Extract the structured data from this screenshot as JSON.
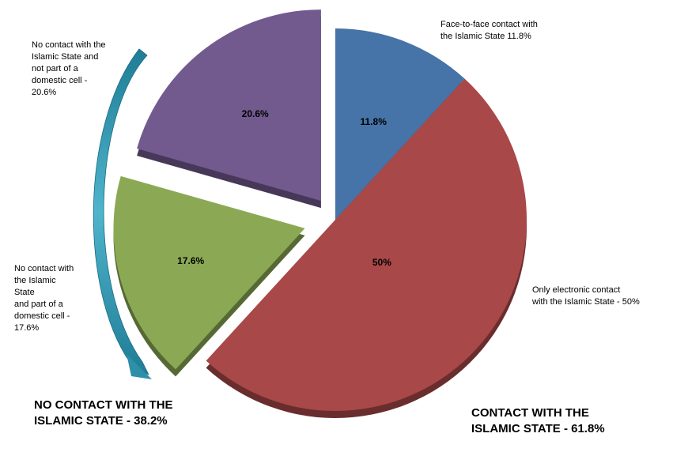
{
  "chart_data": {
    "type": "pie",
    "exploded": true,
    "slices": [
      {
        "label": "Face-to-face contact with\n the Islamic State 11.8%",
        "value": 11.8,
        "data_label": "11.8%",
        "color": "#4673a8"
      },
      {
        "label": "Only electronic contact\nwith the Islamic State - 50%",
        "value": 50,
        "data_label": "50%",
        "color": "#a94848"
      },
      {
        "label": "No contact with\nthe Islamic\nState\nand part of a\ndomestic cell -\n17.6%",
        "value": 17.6,
        "data_label": "17.6%",
        "color": "#8ba954"
      },
      {
        "label": "No contact with the\nIslamic State and\nnot part of a\ndomestic cell -\n20.6%",
        "value": 20.6,
        "data_label": "20.6%",
        "color": "#725a8f"
      }
    ],
    "groups": [
      {
        "text": "NO CONTACT WITH THE\nISLAMIC STATE - 38.2%"
      },
      {
        "text": "CONTACT WITH THE\nISLAMIC STATE - 61.8%"
      }
    ],
    "arrow_color": "#2e8fa8"
  }
}
